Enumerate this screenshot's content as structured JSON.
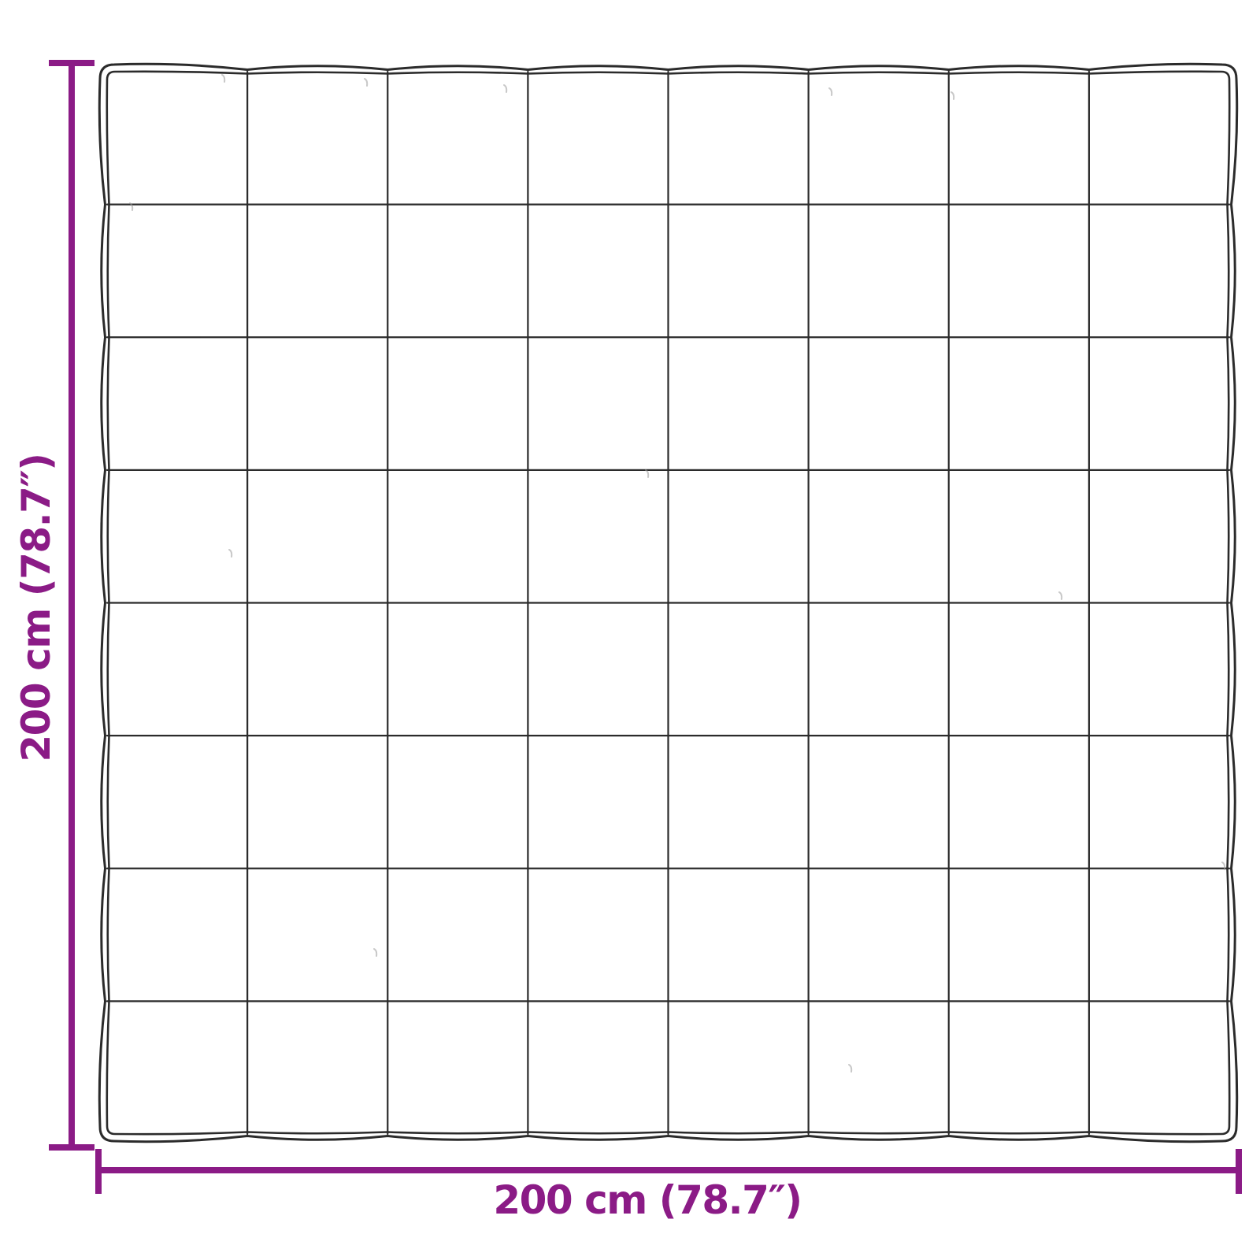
{
  "diagram": {
    "grid": {
      "rows": 8,
      "cols": 8
    },
    "dimensions": {
      "height_label": "200 cm (78.7″)",
      "width_label": "200 cm (78.7″)"
    },
    "colors": {
      "dimension_accent": "#8B1B86",
      "outline": "#2b2b2b",
      "stitch_mark": "#9a9a9a",
      "background": "#ffffff"
    }
  }
}
